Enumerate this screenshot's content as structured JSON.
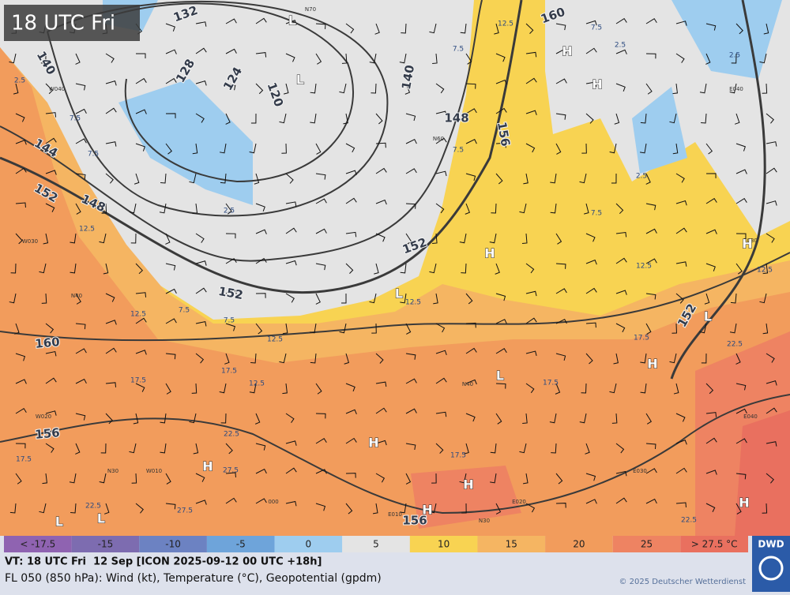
{
  "overlay_title": "18 UTC Fri",
  "contour_labels": [
    "132",
    "140",
    "128",
    "124",
    "120",
    "140",
    "148",
    "156",
    "160",
    "144",
    "152",
    "148",
    "152",
    "152",
    "160",
    "156",
    "152",
    "156"
  ],
  "pressure_centers": [
    "L",
    "L",
    "H",
    "H",
    "H",
    "H",
    "L",
    "L",
    "H",
    "L",
    "H",
    "H",
    "H",
    "H",
    "H",
    "L",
    "L"
  ],
  "temperature_labels": [
    "7.5",
    "7.5",
    "2.5",
    "12.5",
    "12.5",
    "7.5",
    "7.5",
    "12.5",
    "17.5",
    "17.5",
    "12.5",
    "22.5",
    "27.5",
    "17.5",
    "27.5",
    "22.5",
    "17.5",
    "17.5",
    "17.5",
    "22.5",
    "22.5",
    "12.5",
    "7.5",
    "2.5",
    "2.5",
    "7.5",
    "12.5",
    "12.5",
    "2.5",
    "12.5",
    "7.5",
    "7.5",
    "2.5"
  ],
  "grid_labels": [
    "N70",
    "W040",
    "N60",
    "W030",
    "N40",
    "W020",
    "N30",
    "W010",
    "E040",
    "E030",
    "E040",
    "E030",
    "E020",
    "E010",
    "N30",
    "000",
    "N40"
  ],
  "legend": [
    {
      "label": "< -17.5",
      "color": "#8f63b1"
    },
    {
      "label": "-15",
      "color": "#7d6cb0"
    },
    {
      "label": "-10",
      "color": "#6c82c2"
    },
    {
      "label": "-5",
      "color": "#6ea4da"
    },
    {
      "label": "0",
      "color": "#9ecdef"
    },
    {
      "label": "5",
      "color": "#e4e4e4"
    },
    {
      "label": "10",
      "color": "#f8d352"
    },
    {
      "label": "15",
      "color": "#f5b562"
    },
    {
      "label": "20",
      "color": "#f29c5c"
    },
    {
      "label": "25",
      "color": "#ee8362"
    },
    {
      "label": "> 27.5 °C",
      "color": "#e9705f"
    }
  ],
  "footer": {
    "line1": "VT: 18 UTC Fri  12 Sep [ICON 2025-09-12 00 UTC +18h]",
    "line2": "FL 050 (850 hPa): Wind (kt), Temperature (°C), Geopotential (gpdm)",
    "copyright": "© 2025 Deutscher Wetterdienst",
    "logo": "DWD"
  }
}
